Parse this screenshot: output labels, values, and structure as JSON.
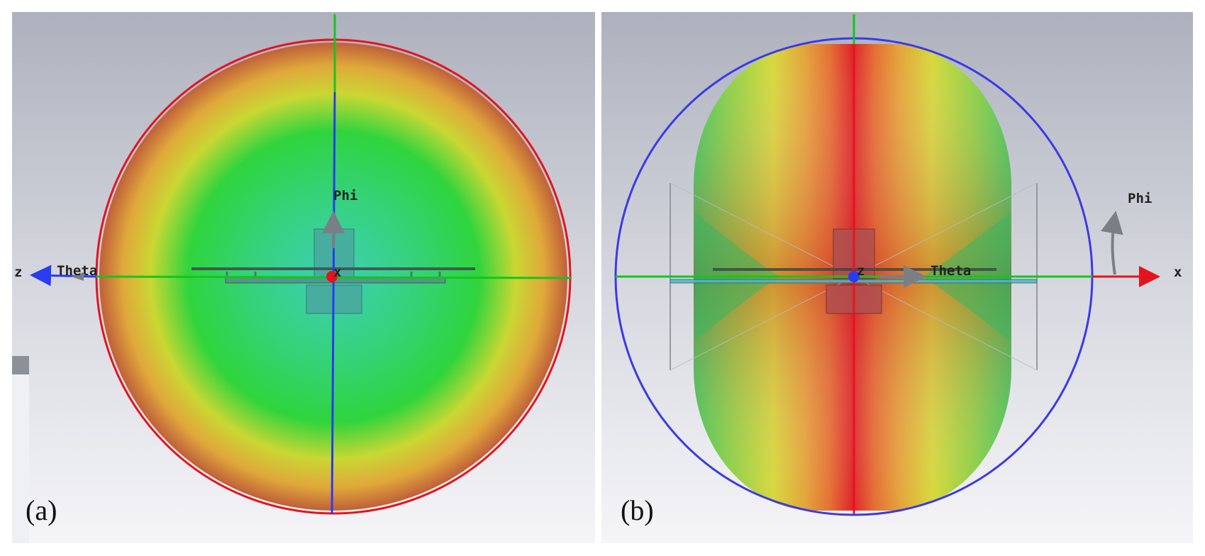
{
  "panels": [
    {
      "id": "a",
      "label": "(a)",
      "axes": {
        "horizontal": "z",
        "center": "x"
      },
      "angle_labels": {
        "phi": "Phi",
        "theta": "Theta"
      },
      "boundary_color": "#e5141c",
      "pattern_colors": [
        "#3ecfb8",
        "#35d27a",
        "#2fd43d",
        "#c9d733",
        "#e0a83a",
        "#c0603a"
      ]
    },
    {
      "id": "b",
      "label": "(b)",
      "axes": {
        "horizontal": "x",
        "center": "z"
      },
      "angle_labels": {
        "phi": "Phi",
        "theta": "Theta"
      },
      "boundary_color": "#3a3ae6",
      "pattern_colors": [
        "#e0242b",
        "#e0452f",
        "#e36f32",
        "#e3a43a",
        "#d6d83c",
        "#8ed044",
        "#3ec95a"
      ]
    }
  ],
  "colors": {
    "background_top": "#aeb1bd",
    "background_bottom": "#f5f5f8",
    "axis_red": "#e5141c",
    "axis_green": "#16c41f",
    "axis_blue": "#2a3cf0",
    "arrow_gray": "#7a7f86"
  }
}
